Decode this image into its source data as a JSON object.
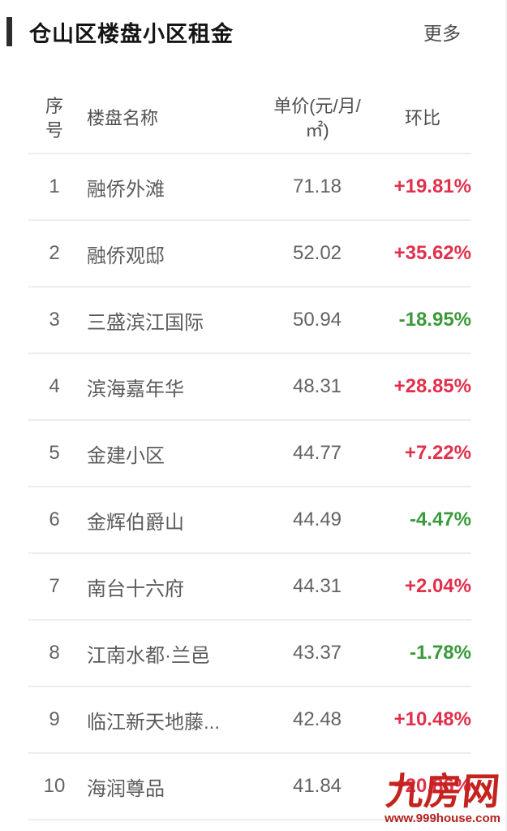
{
  "panel": {
    "title": "仓山区楼盘小区租金",
    "more_label": "更多"
  },
  "table": {
    "headers": {
      "no": "序\n号",
      "name": "楼盘名称",
      "price": "单价(元/月/\n㎡)",
      "change": "环比"
    },
    "rows": [
      {
        "no": "1",
        "name": "融侨外滩",
        "price": "71.18",
        "change": "+19.81%",
        "trend": "up"
      },
      {
        "no": "2",
        "name": "融侨观邸",
        "price": "52.02",
        "change": "+35.62%",
        "trend": "up"
      },
      {
        "no": "3",
        "name": "三盛滨江国际",
        "price": "50.94",
        "change": "-18.95%",
        "trend": "down"
      },
      {
        "no": "4",
        "name": "滨海嘉年华",
        "price": "48.31",
        "change": "+28.85%",
        "trend": "up"
      },
      {
        "no": "5",
        "name": "金建小区",
        "price": "44.77",
        "change": "+7.22%",
        "trend": "up"
      },
      {
        "no": "6",
        "name": "金辉伯爵山",
        "price": "44.49",
        "change": "-4.47%",
        "trend": "down"
      },
      {
        "no": "7",
        "name": "南台十六府",
        "price": "44.31",
        "change": "+2.04%",
        "trend": "up"
      },
      {
        "no": "8",
        "name": "江南水都·兰邑",
        "price": "43.37",
        "change": "-1.78%",
        "trend": "down"
      },
      {
        "no": "9",
        "name": "临江新天地藤...",
        "price": "42.48",
        "change": "+10.48%",
        "trend": "up"
      },
      {
        "no": "10",
        "name": "海润尊品",
        "price": "41.84",
        "change": "+20.86%",
        "trend": "up"
      }
    ]
  },
  "watermark": {
    "logo": "九房网",
    "url": "www.999house.com"
  },
  "colors": {
    "up": "#e1304c",
    "down": "#3a9a3a",
    "accent_bar": "#2d2d2d",
    "watermark_red": "#c4231f"
  }
}
